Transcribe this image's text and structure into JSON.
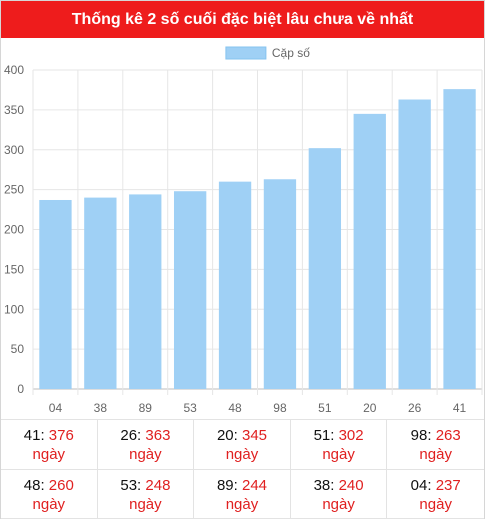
{
  "header": {
    "title": "Thống kê 2 số cuối đặc biệt lâu chưa về nhất"
  },
  "colors": {
    "bar": "#9fd0f5",
    "header": "#ee1c1c",
    "value_text": "#e02020"
  },
  "chart_data": {
    "type": "bar",
    "categories": [
      "04",
      "38",
      "89",
      "53",
      "48",
      "98",
      "51",
      "20",
      "26",
      "41"
    ],
    "series": [
      {
        "name": "Cặp số",
        "values": [
          237,
          240,
          244,
          248,
          260,
          263,
          302,
          345,
          363,
          376
        ]
      }
    ],
    "ylim": [
      0,
      400
    ],
    "yticks": [
      "0",
      "50",
      "100",
      "150",
      "200",
      "250",
      "300",
      "350",
      "400"
    ],
    "legend": "top-center",
    "grid": true
  },
  "stats": [
    {
      "number": "41",
      "days": "376",
      "unit": "ngày"
    },
    {
      "number": "26",
      "days": "363",
      "unit": "ngày"
    },
    {
      "number": "20",
      "days": "345",
      "unit": "ngày"
    },
    {
      "number": "51",
      "days": "302",
      "unit": "ngày"
    },
    {
      "number": "98",
      "days": "263",
      "unit": "ngày"
    },
    {
      "number": "48",
      "days": "260",
      "unit": "ngày"
    },
    {
      "number": "53",
      "days": "248",
      "unit": "ngày"
    },
    {
      "number": "89",
      "days": "244",
      "unit": "ngày"
    },
    {
      "number": "38",
      "days": "240",
      "unit": "ngày"
    },
    {
      "number": "04",
      "days": "237",
      "unit": "ngày"
    }
  ]
}
